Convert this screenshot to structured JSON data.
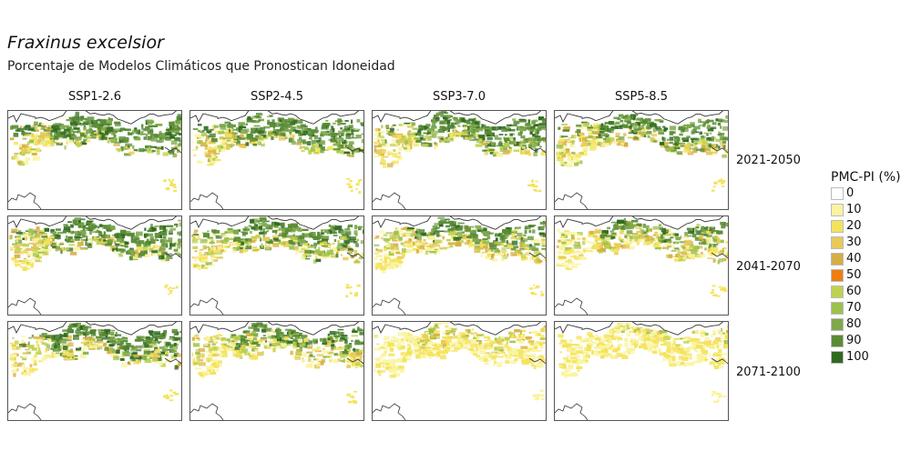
{
  "map": {
    "title": "Fraxinus excelsior",
    "subtitle": "Porcentaje de Modelos Climáticos que Pronostican Idoneidad",
    "scenarios": [
      "SSP1-2.6",
      "SSP2-4.5",
      "SSP3-7.0",
      "SSP5-8.5"
    ],
    "periods": [
      "2021-2050",
      "2041-2070",
      "2071-2100"
    ],
    "legend": {
      "title": "PMC-PI (%)",
      "items": [
        {
          "label": "0",
          "color": "#ffffff"
        },
        {
          "label": "10",
          "color": "#faf4a0"
        },
        {
          "label": "20",
          "color": "#f4e35a"
        },
        {
          "label": "30",
          "color": "#e8c95a"
        },
        {
          "label": "40",
          "color": "#d7ae44"
        },
        {
          "label": "50",
          "color": "#f07d0f"
        },
        {
          "label": "60",
          "color": "#bfd24e"
        },
        {
          "label": "70",
          "color": "#9cc14c"
        },
        {
          "label": "80",
          "color": "#7ea84a"
        },
        {
          "label": "90",
          "color": "#5a8c35"
        },
        {
          "label": "100",
          "color": "#2f6a1f"
        }
      ]
    },
    "panel_suitability": [
      [
        0.85,
        0.85,
        0.82,
        0.8
      ],
      [
        0.82,
        0.78,
        0.72,
        0.66
      ],
      [
        0.78,
        0.7,
        0.38,
        0.28
      ]
    ]
  }
}
